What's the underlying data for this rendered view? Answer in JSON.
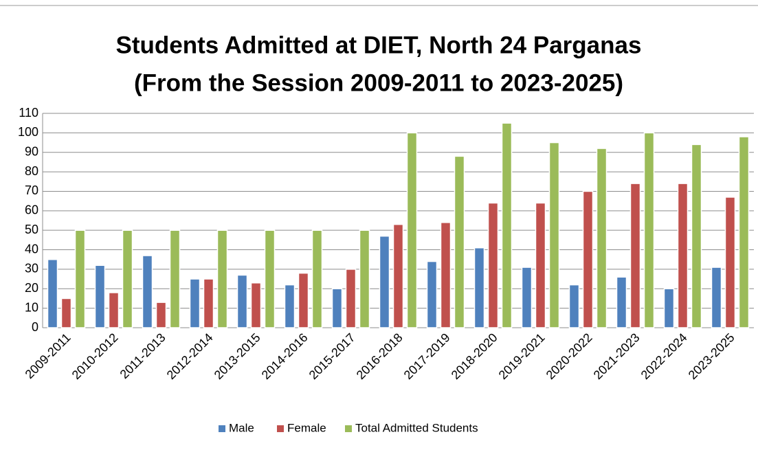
{
  "chart_data": {
    "type": "bar",
    "title": "Students Admitted at DIET, North 24 Parganas",
    "subtitle": "(From the Session 2009-2011 to 2023-2025)",
    "categories": [
      "2009-2011",
      "2010-2012",
      "2011-2013",
      "2012-2014",
      "2013-2015",
      "2014-2016",
      "2015-2017",
      "2016-2018",
      "2017-2019",
      "2018-2020",
      "2019-2021",
      "2020-2022",
      "2021-2023",
      "2022-2024",
      "2023-2025"
    ],
    "series": [
      {
        "name": "Male",
        "color": "#4f81bd",
        "values": [
          35,
          32,
          37,
          25,
          27,
          22,
          20,
          47,
          34,
          41,
          31,
          22,
          26,
          20,
          31
        ]
      },
      {
        "name": "Female",
        "color": "#c0504d",
        "values": [
          15,
          18,
          13,
          25,
          23,
          28,
          30,
          53,
          54,
          64,
          64,
          70,
          74,
          74,
          67
        ]
      },
      {
        "name": "Total Admitted Students",
        "color": "#9bbb59",
        "values": [
          50,
          50,
          50,
          50,
          50,
          50,
          50,
          100,
          88,
          105,
          95,
          92,
          100,
          94,
          98
        ]
      }
    ],
    "ylim": [
      0,
      110
    ],
    "yticks": [
      0,
      10,
      20,
      30,
      40,
      50,
      60,
      70,
      80,
      90,
      100,
      110
    ],
    "grid": true,
    "legend": "bottom"
  }
}
